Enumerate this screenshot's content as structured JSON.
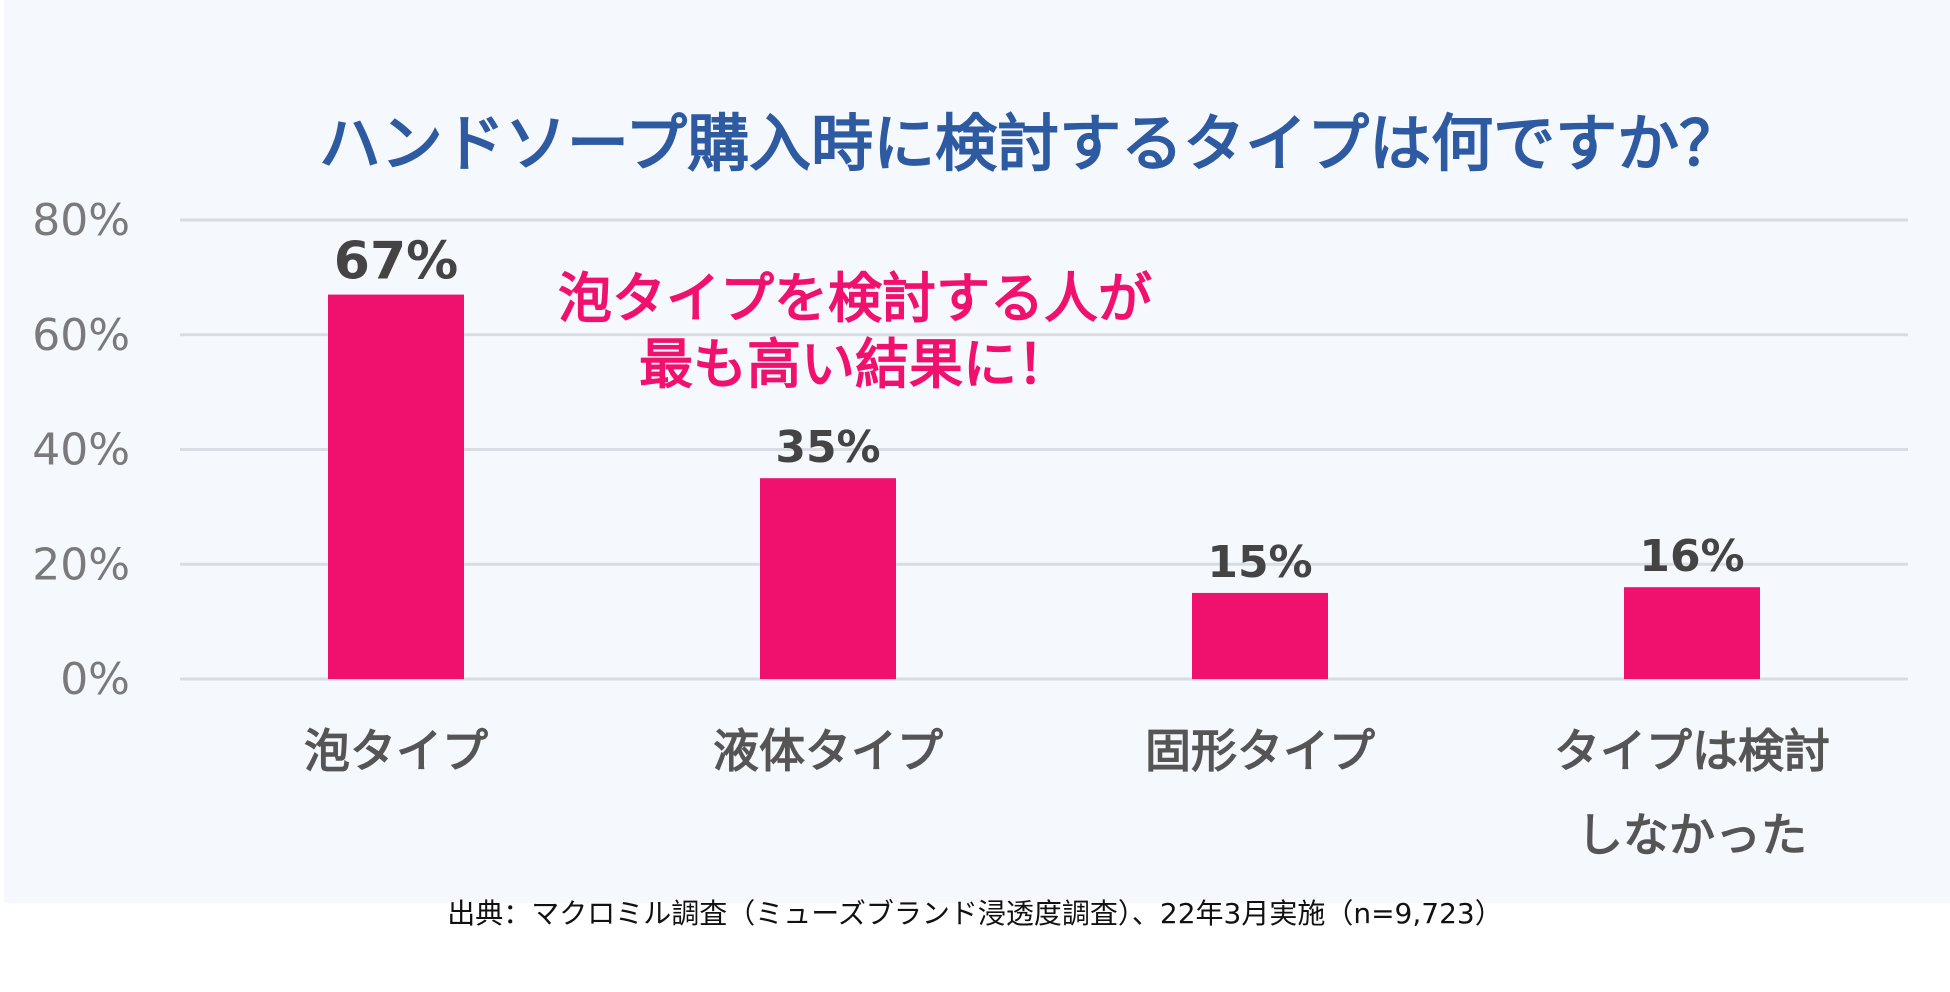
{
  "chart_data": {
    "type": "bar",
    "title": "ハンドソープ購入時に検討するタイプは何ですか？",
    "categories": [
      "泡タイプ",
      "液体タイプ",
      "固形タイプ",
      "タイプは検討\nしなかった"
    ],
    "values": [
      67,
      35,
      15,
      16
    ],
    "value_labels": [
      "67%",
      "35%",
      "15%",
      "16%"
    ],
    "yticks": [
      "0%",
      "20%",
      "40%",
      "60%",
      "80%"
    ],
    "ylim": [
      0,
      80
    ],
    "grid": true,
    "legend": "none",
    "annotation": [
      "泡タイプを検討する人が",
      "最も高い結果に！"
    ],
    "colors": {
      "bar": "#f0106e",
      "title": "#2d5aa0",
      "annotation": "#f0106e",
      "grid": "#d9dde3",
      "axis_text": "#7a7a7a",
      "value_text": "#444444",
      "category_text": "#555555",
      "background": "#f5f8fd"
    }
  },
  "footer": {
    "source": "出典：マクロミル調査（ミューズブランド浸透度調査）、22年3月実施（n=9,723）"
  }
}
